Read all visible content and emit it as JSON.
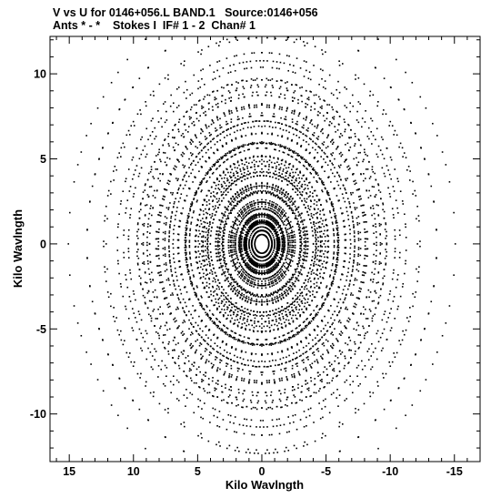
{
  "header": {
    "line1": "V vs U for 0146+056.L BAND.1   Source:0146+056",
    "line2": "Ants * - *    Stokes I  IF# 1 - 2  Chan# 1"
  },
  "chart_data": {
    "type": "scatter",
    "title": "V vs U for 0146+056.L BAND.1   Source:0146+056",
    "subtitle": "Ants * - *    Stokes I  IF# 1 - 2  Chan# 1",
    "xlabel": "Kilo Wavlngth",
    "ylabel": "Kilo Wavlngth",
    "xlim": [
      16.5,
      -17
    ],
    "ylim": [
      -12.8,
      12.2
    ],
    "xticks": [
      15,
      10,
      5,
      0,
      -5,
      -10,
      -15
    ],
    "xtick_labels": [
      "15",
      "10",
      "5",
      "0",
      "-5",
      "-10",
      "-15"
    ],
    "yticks": [
      10,
      5,
      0,
      -5,
      -10
    ],
    "ytick_labels": [
      "10",
      "5",
      "0",
      "-5",
      "-10"
    ],
    "grid": false,
    "legend": "none",
    "point_color": "#000000",
    "uv_structure": {
      "arm_angles_deg": [
        -30,
        90,
        210
      ],
      "arm_positions_kwl": [
        0.45,
        1.0,
        1.8,
        2.8,
        4.0,
        5.4,
        7.0,
        8.7
      ],
      "hour_angle_arc_deg": [
        -42,
        42
      ],
      "hour_angle_samples": 13
    }
  }
}
